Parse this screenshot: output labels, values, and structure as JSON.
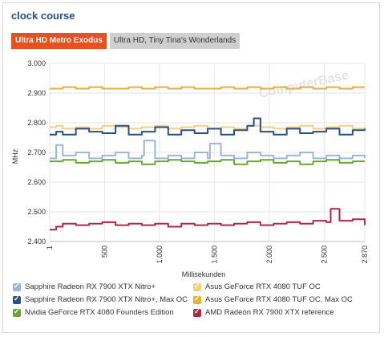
{
  "title": "clock course",
  "tabs": [
    {
      "label": "Ultra HD Metro Exodus",
      "active": true
    },
    {
      "label": "Ultra HD, Tiny Tina's Wonderlands",
      "active": false
    }
  ],
  "watermark": "ComputerBase",
  "chart_data": {
    "type": "line",
    "ylabel": "MHz",
    "xlabel": "Millisekunden",
    "ylim": [
      2400,
      3000
    ],
    "xlim": [
      1,
      2870
    ],
    "y_ticks": [
      "2.400",
      "2.500",
      "2.600",
      "2.700",
      "2.800",
      "2.900",
      "3.000"
    ],
    "x_ticks": [
      {
        "value": 1,
        "label": "1"
      },
      {
        "value": 500,
        "label": "500"
      },
      {
        "value": 1000,
        "label": "1.000"
      },
      {
        "value": 1500,
        "label": "1.500"
      },
      {
        "value": 2000,
        "label": "2.000"
      },
      {
        "value": 2500,
        "label": "2.500"
      },
      {
        "value": 2870,
        "label": "2.870"
      }
    ],
    "grid": true,
    "series": [
      {
        "name": "Sapphire Radeon RX 7900 XTX Nitro+",
        "color": "#9fb6d3",
        "x": [
          1,
          60,
          120,
          240,
          360,
          480,
          600,
          720,
          840,
          860,
          960,
          1080,
          1200,
          1320,
          1440,
          1460,
          1560,
          1680,
          1800,
          1920,
          2040,
          2160,
          2280,
          2400,
          2520,
          2640,
          2760,
          2870
        ],
        "y": [
          2680,
          2725,
          2690,
          2700,
          2680,
          2690,
          2700,
          2680,
          2690,
          2740,
          2680,
          2690,
          2680,
          2700,
          2680,
          2730,
          2690,
          2680,
          2700,
          2690,
          2680,
          2690,
          2700,
          2680,
          2690,
          2680,
          2690,
          2680
        ]
      },
      {
        "name": "Asus GeForce RTX 4080 TUF OC",
        "color": "#f2cf87",
        "x": [
          1,
          60,
          120,
          240,
          360,
          480,
          600,
          720,
          840,
          960,
          1080,
          1200,
          1320,
          1440,
          1560,
          1680,
          1800,
          1920,
          2040,
          2160,
          2280,
          2400,
          2520,
          2640,
          2760,
          2870
        ],
        "y": [
          2785,
          2790,
          2780,
          2785,
          2780,
          2790,
          2785,
          2780,
          2785,
          2790,
          2780,
          2785,
          2790,
          2780,
          2785,
          2780,
          2790,
          2785,
          2780,
          2785,
          2790,
          2780,
          2785,
          2790,
          2780,
          2785
        ]
      },
      {
        "name": "Sapphire Radeon RX 7900 XTX Nitro+, Max OC",
        "color": "#2b4f81",
        "x": [
          1,
          60,
          120,
          240,
          360,
          480,
          600,
          720,
          840,
          960,
          1080,
          1200,
          1320,
          1440,
          1560,
          1680,
          1800,
          1860,
          1920,
          2040,
          2160,
          2280,
          2400,
          2520,
          2640,
          2760,
          2870
        ],
        "y": [
          2760,
          2770,
          2760,
          2780,
          2770,
          2765,
          2790,
          2760,
          2770,
          2785,
          2760,
          2775,
          2765,
          2780,
          2760,
          2775,
          2790,
          2815,
          2770,
          2760,
          2780,
          2765,
          2770,
          2780,
          2760,
          2775,
          2780
        ]
      },
      {
        "name": "Asus GeForce RTX 4080 TUF OC, Max OC",
        "color": "#e8ae3b",
        "x": [
          1,
          120,
          240,
          360,
          480,
          600,
          720,
          840,
          960,
          1080,
          1200,
          1320,
          1440,
          1560,
          1680,
          1800,
          1920,
          2040,
          2160,
          2280,
          2400,
          2520,
          2640,
          2760,
          2870
        ],
        "y": [
          2915,
          2920,
          2915,
          2920,
          2915,
          2915,
          2920,
          2915,
          2920,
          2915,
          2920,
          2915,
          2915,
          2920,
          2915,
          2920,
          2915,
          2920,
          2915,
          2920,
          2915,
          2920,
          2915,
          2920,
          2920
        ]
      },
      {
        "name": "Nvidia GeForce RTX 4080 Founders Edition",
        "color": "#6ba531",
        "x": [
          1,
          120,
          240,
          360,
          480,
          600,
          720,
          840,
          960,
          1080,
          1200,
          1320,
          1440,
          1560,
          1680,
          1800,
          1920,
          2040,
          2160,
          2280,
          2400,
          2520,
          2640,
          2760,
          2870
        ],
        "y": [
          2670,
          2675,
          2665,
          2670,
          2675,
          2665,
          2670,
          2660,
          2670,
          2675,
          2670,
          2665,
          2670,
          2675,
          2660,
          2670,
          2675,
          2665,
          2670,
          2660,
          2670,
          2675,
          2665,
          2670,
          2670
        ]
      },
      {
        "name": "AMD Radeon RX 7900 XTX reference",
        "color": "#b42541",
        "x": [
          1,
          60,
          120,
          240,
          360,
          480,
          600,
          720,
          840,
          960,
          1080,
          1200,
          1320,
          1440,
          1560,
          1680,
          1800,
          1920,
          2040,
          2160,
          2280,
          2400,
          2520,
          2560,
          2640,
          2760,
          2870
        ],
        "y": [
          2440,
          2450,
          2460,
          2455,
          2460,
          2465,
          2455,
          2460,
          2455,
          2460,
          2450,
          2460,
          2455,
          2460,
          2455,
          2460,
          2465,
          2455,
          2460,
          2465,
          2460,
          2470,
          2465,
          2510,
          2470,
          2475,
          2455
        ]
      }
    ]
  },
  "legend": [
    {
      "label": "Sapphire Radeon RX 7900 XTX Nitro+",
      "color": "#9fb6d3"
    },
    {
      "label": "Asus GeForce RTX 4080 TUF OC",
      "color": "#f2cf87"
    },
    {
      "label": "Sapphire Radeon RX 7900 XTX Nitro+, Max OC",
      "color": "#2b4f81"
    },
    {
      "label": "Asus GeForce RTX 4080 TUF OC, Max OC",
      "color": "#e8ae3b"
    },
    {
      "label": "Nvidia GeForce RTX 4080 Founders Edition",
      "color": "#6ba531"
    },
    {
      "label": "AMD Radeon RX 7900 XTX reference",
      "color": "#b42541"
    }
  ]
}
